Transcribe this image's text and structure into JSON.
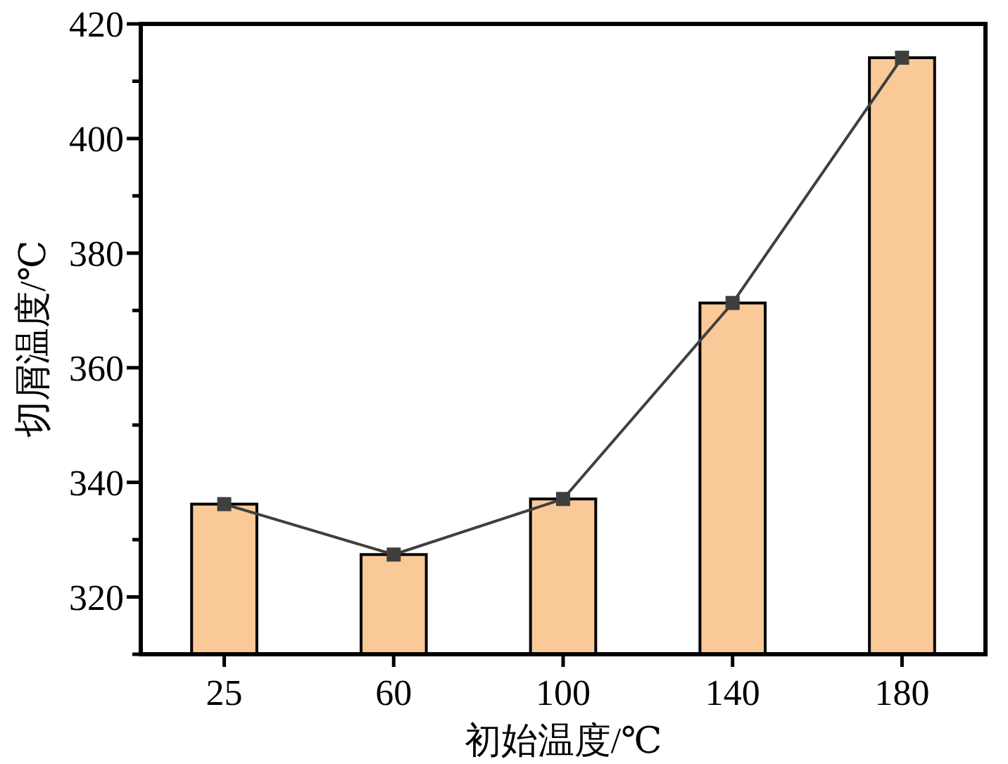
{
  "chart_data": {
    "type": "bar",
    "xlabel": "初始温度/℃",
    "ylabel": "切屑温度/℃",
    "categories": [
      "25",
      "60",
      "100",
      "140",
      "180"
    ],
    "series": [
      {
        "color": "#f9c997",
        "values": [
          336.2,
          327.4,
          337.1,
          371.3,
          414.1
        ]
      },
      {
        "type": "line",
        "color": "#3f3f3f",
        "values": [
          336.2,
          327.4,
          337.1,
          371.3,
          414.1
        ],
        "marker": "square",
        "line_style": "solid"
      }
    ],
    "ylim": [
      310,
      420
    ],
    "yticks": [
      {
        "value": 310,
        "label": null
      },
      320,
      {
        "value": 330,
        "label": null
      },
      340,
      {
        "value": 350,
        "label": null
      },
      360,
      {
        "value": 370,
        "label": null
      },
      380,
      {
        "value": 390,
        "label": null
      },
      400,
      {
        "value": 410,
        "label": null
      },
      420
    ],
    "grid": false
  }
}
